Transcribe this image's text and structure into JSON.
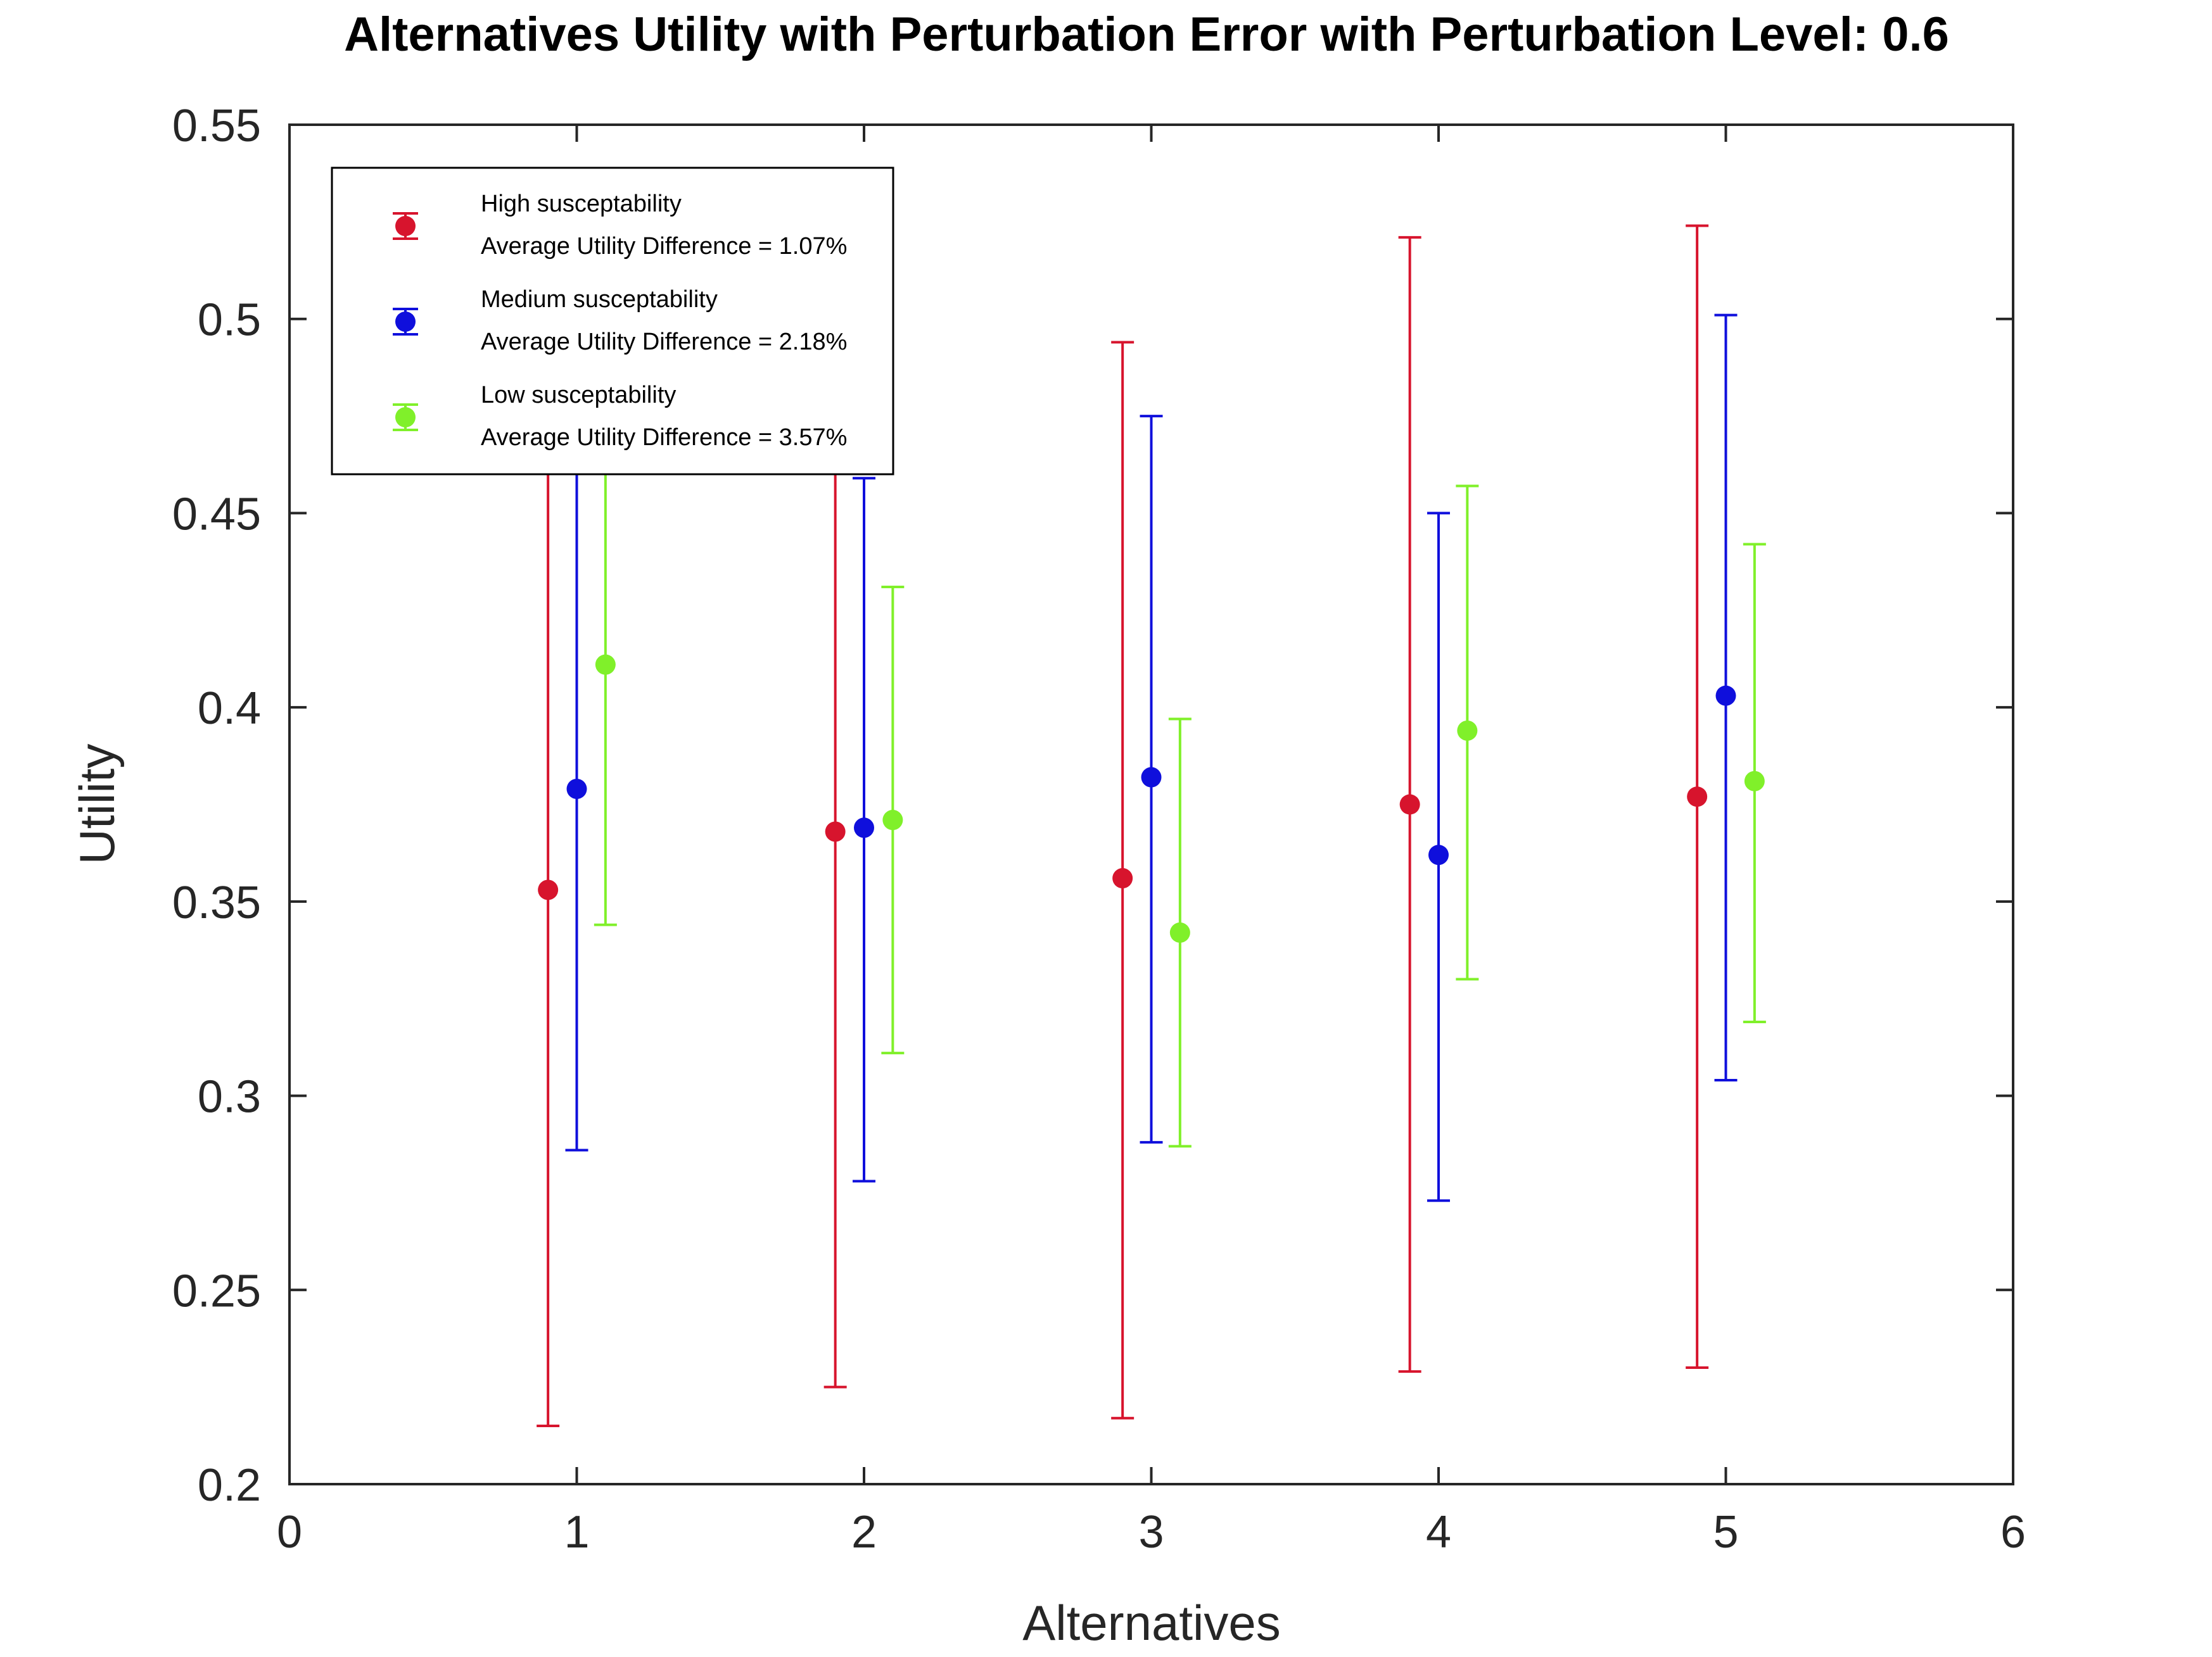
{
  "chart_data": {
    "type": "scatter",
    "title": "Alternatives Utility with Perturbation Error with Perturbation Level: 0.6",
    "xlabel": "Alternatives",
    "ylabel": "Utility",
    "xlim": [
      0,
      6
    ],
    "ylim": [
      0.2,
      0.55
    ],
    "xticks": [
      "0",
      "1",
      "2",
      "3",
      "4",
      "5",
      "6"
    ],
    "yticks": [
      "0.2",
      "0.25",
      "0.3",
      "0.35",
      "0.4",
      "0.45",
      "0.5",
      "0.55"
    ],
    "grid": false,
    "legend_position": "top-left",
    "series": [
      {
        "name": "High susceptability",
        "legend_note": "Average Utility Difference = 1.07%",
        "color": "#D7142D",
        "x": [
          0.9,
          1.9,
          2.9,
          3.9,
          4.9
        ],
        "y": [
          0.353,
          0.368,
          0.356,
          0.375,
          0.377
        ],
        "lower": [
          0.215,
          0.225,
          0.217,
          0.229,
          0.23
        ],
        "upper": [
          0.49,
          0.51,
          0.494,
          0.521,
          0.524
        ]
      },
      {
        "name": "Medium susceptability",
        "legend_note": "Average Utility Difference = 2.18%",
        "color": "#0F0FDC",
        "x": [
          1.0,
          2.0,
          3.0,
          4.0,
          5.0
        ],
        "y": [
          0.379,
          0.369,
          0.382,
          0.362,
          0.403
        ],
        "lower": [
          0.286,
          0.278,
          0.288,
          0.273,
          0.304
        ],
        "upper": [
          0.472,
          0.459,
          0.475,
          0.45,
          0.501
        ]
      },
      {
        "name": "Low susceptability",
        "legend_note": "Average Utility Difference = 3.57%",
        "color": "#80F02A",
        "x": [
          1.1,
          2.1,
          3.1,
          4.1,
          5.1
        ],
        "y": [
          0.411,
          0.371,
          0.342,
          0.394,
          0.381
        ],
        "lower": [
          0.344,
          0.311,
          0.287,
          0.33,
          0.319
        ],
        "upper": [
          0.478,
          0.431,
          0.397,
          0.457,
          0.442
        ]
      }
    ]
  }
}
